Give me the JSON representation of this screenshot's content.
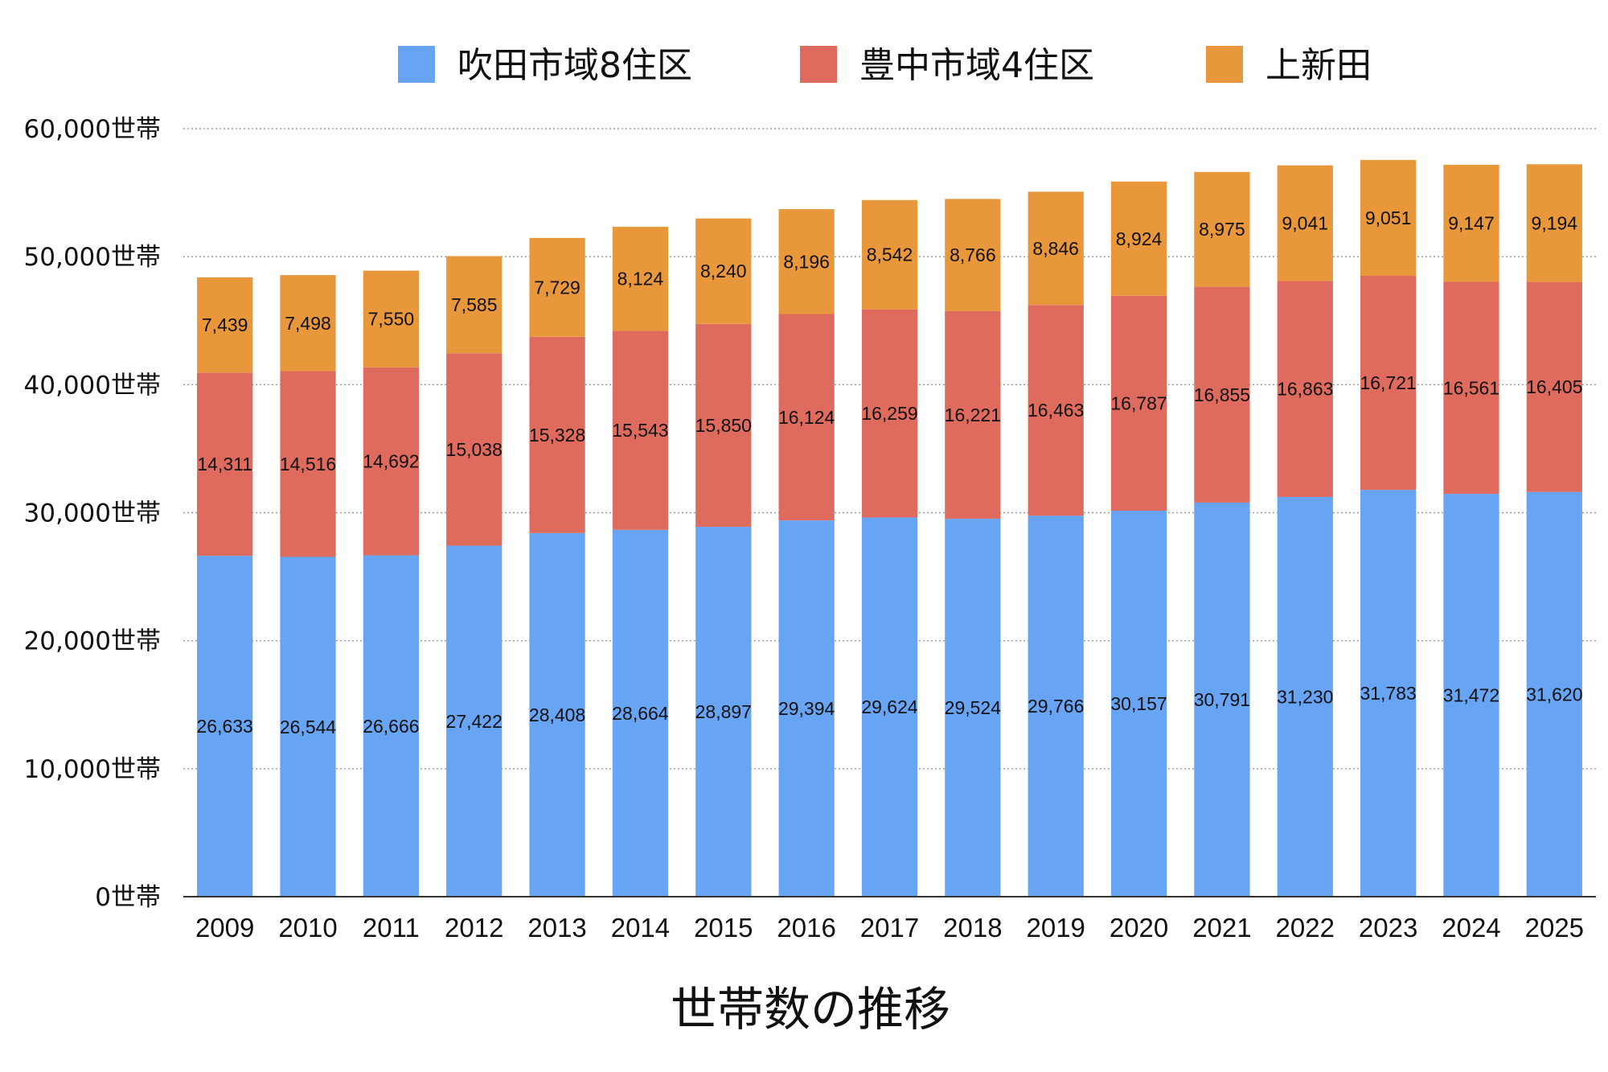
{
  "chart_data": {
    "type": "bar",
    "stacked": true,
    "title": "世帯数の推移",
    "xlabel": "",
    "ylabel": "",
    "ylim": [
      0,
      60000
    ],
    "y_ticks": [
      {
        "value": 0,
        "label": "0世帯"
      },
      {
        "value": 10000,
        "label": "10,000世帯"
      },
      {
        "value": 20000,
        "label": "20,000世帯"
      },
      {
        "value": 30000,
        "label": "30,000世帯"
      },
      {
        "value": 40000,
        "label": "40,000世帯"
      },
      {
        "value": 50000,
        "label": "50,000世帯"
      },
      {
        "value": 60000,
        "label": "60,000世帯"
      }
    ],
    "grid": true,
    "legend_position": "top-center",
    "categories": [
      "2009",
      "2010",
      "2011",
      "2012",
      "2013",
      "2014",
      "2015",
      "2016",
      "2017",
      "2018",
      "2019",
      "2020",
      "2021",
      "2022",
      "2023",
      "2024",
      "2025"
    ],
    "series": [
      {
        "name": "吹田市域8住区",
        "color": "#68a4f4",
        "values": [
          26633,
          26544,
          26666,
          27422,
          28408,
          28664,
          28897,
          29394,
          29624,
          29524,
          29766,
          30157,
          30791,
          31230,
          31783,
          31472,
          31620
        ],
        "labels": [
          "26,633",
          "26,544",
          "26,666",
          "27,422",
          "28,408",
          "28,664",
          "28,897",
          "29,394",
          "29,624",
          "29,524",
          "29,766",
          "30,157",
          "30,791",
          "31,230",
          "31,783",
          "31,472",
          "31,620"
        ]
      },
      {
        "name": "豊中市域4住区",
        "color": "#de6b5d",
        "values": [
          14311,
          14516,
          14692,
          15038,
          15328,
          15543,
          15850,
          16124,
          16259,
          16221,
          16463,
          16787,
          16855,
          16863,
          16721,
          16561,
          16405
        ],
        "labels": [
          "14,311",
          "14,516",
          "14,692",
          "15,038",
          "15,328",
          "15,543",
          "15,850",
          "16,124",
          "16,259",
          "16,221",
          "16,463",
          "16,787",
          "16,855",
          "16,863",
          "16,721",
          "16,561",
          "16,405"
        ]
      },
      {
        "name": "上新田",
        "color": "#e8973b",
        "values": [
          7439,
          7498,
          7550,
          7585,
          7729,
          8124,
          8240,
          8196,
          8542,
          8766,
          8846,
          8924,
          8975,
          9041,
          9051,
          9147,
          9194
        ],
        "labels": [
          "7,439",
          "7,498",
          "7,550",
          "7,585",
          "7,729",
          "8,124",
          "8,240",
          "8,196",
          "8,542",
          "8,766",
          "8,846",
          "8,924",
          "8,975",
          "9,041",
          "9,051",
          "9,147",
          "9,194"
        ]
      }
    ]
  }
}
